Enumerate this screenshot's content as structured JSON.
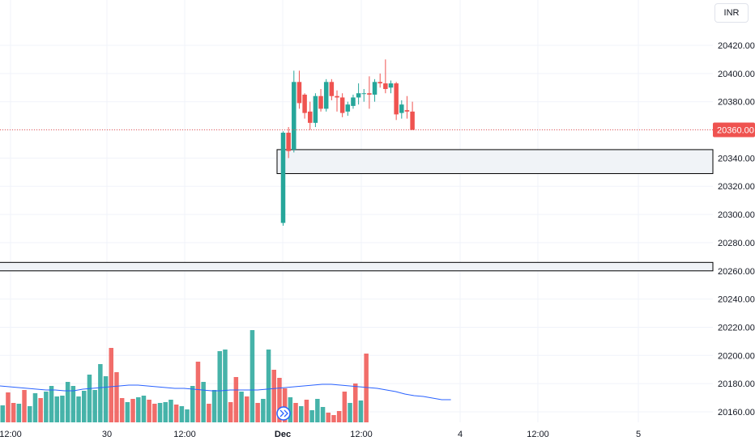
{
  "currency_label": "INR",
  "current_price_label": "20360.00",
  "chart_data": {
    "type": "candlestick",
    "y_axis": {
      "ticks": [
        20420,
        20400,
        20380,
        20360,
        20340,
        20320,
        20300,
        20280,
        20260,
        20240,
        20220,
        20200,
        20180,
        20160
      ],
      "tick_labels": [
        "20420.00",
        "20400.00",
        "20380.00",
        "20340.00",
        "20320.00",
        "20300.00",
        "20280.00",
        "20260.00",
        "20240.00",
        "20220.00",
        "20200.00",
        "20180.00",
        "20160.00"
      ]
    },
    "x_axis": {
      "tick_labels": [
        "12:00",
        "30",
        "12:00",
        "Dec",
        "12:00",
        "4",
        "12:00",
        "5"
      ]
    },
    "current_price": 20360.0,
    "candles": [
      {
        "o": 20294,
        "h": 20359,
        "l": 20292,
        "c": 20358
      },
      {
        "o": 20358,
        "h": 20362,
        "l": 20340,
        "c": 20345
      },
      {
        "o": 20346,
        "h": 20402,
        "l": 20344,
        "c": 20394
      },
      {
        "o": 20394,
        "h": 20402,
        "l": 20375,
        "c": 20379
      },
      {
        "o": 20385,
        "h": 20386,
        "l": 20368,
        "c": 20372
      },
      {
        "o": 20373,
        "h": 20380,
        "l": 20360,
        "c": 20365
      },
      {
        "o": 20365,
        "h": 20386,
        "l": 20362,
        "c": 20384
      },
      {
        "o": 20384,
        "h": 20389,
        "l": 20373,
        "c": 20375
      },
      {
        "o": 20375,
        "h": 20396,
        "l": 20373,
        "c": 20394
      },
      {
        "o": 20394,
        "h": 20396,
        "l": 20381,
        "c": 20384
      },
      {
        "o": 20384,
        "h": 20388,
        "l": 20373,
        "c": 20383
      },
      {
        "o": 20383,
        "h": 20386,
        "l": 20369,
        "c": 20372
      },
      {
        "o": 20373,
        "h": 20380,
        "l": 20370,
        "c": 20378
      },
      {
        "o": 20377,
        "h": 20385,
        "l": 20375,
        "c": 20383
      },
      {
        "o": 20383,
        "h": 20393,
        "l": 20378,
        "c": 20386
      },
      {
        "o": 20386,
        "h": 20389,
        "l": 20380,
        "c": 20386
      },
      {
        "o": 20386,
        "h": 20398,
        "l": 20375,
        "c": 20385
      },
      {
        "o": 20385,
        "h": 20396,
        "l": 20380,
        "c": 20394
      },
      {
        "o": 20394,
        "h": 20400,
        "l": 20390,
        "c": 20393
      },
      {
        "o": 20393,
        "h": 20410,
        "l": 20386,
        "c": 20389
      },
      {
        "o": 20390,
        "h": 20395,
        "l": 20386,
        "c": 20393
      },
      {
        "o": 20393,
        "h": 20394,
        "l": 20367,
        "c": 20371
      },
      {
        "o": 20372,
        "h": 20381,
        "l": 20368,
        "c": 20378
      },
      {
        "o": 20374,
        "h": 20384,
        "l": 20368,
        "c": 20373
      },
      {
        "o": 20373,
        "h": 20380,
        "l": 20360,
        "c": 20360
      }
    ],
    "zones": [
      {
        "top": 20346,
        "bottom": 20329
      },
      {
        "top": 20266,
        "bottom": 20260
      }
    ],
    "volume_bars": [
      {
        "v": 21,
        "dir": "up"
      },
      {
        "v": 37,
        "dir": "down"
      },
      {
        "v": 24,
        "dir": "down"
      },
      {
        "v": 23,
        "dir": "up"
      },
      {
        "v": 40,
        "dir": "down"
      },
      {
        "v": 20,
        "dir": "up"
      },
      {
        "v": 36,
        "dir": "up"
      },
      {
        "v": 30,
        "dir": "down"
      },
      {
        "v": 38,
        "dir": "up"
      },
      {
        "v": 45,
        "dir": "up"
      },
      {
        "v": 32,
        "dir": "up"
      },
      {
        "v": 33,
        "dir": "up"
      },
      {
        "v": 50,
        "dir": "up"
      },
      {
        "v": 45,
        "dir": "up"
      },
      {
        "v": 32,
        "dir": "up"
      },
      {
        "v": 39,
        "dir": "up"
      },
      {
        "v": 59,
        "dir": "up"
      },
      {
        "v": 40,
        "dir": "up"
      },
      {
        "v": 72,
        "dir": "up"
      },
      {
        "v": 57,
        "dir": "up"
      },
      {
        "v": 92,
        "dir": "down"
      },
      {
        "v": 62,
        "dir": "down"
      },
      {
        "v": 30,
        "dir": "down"
      },
      {
        "v": 25,
        "dir": "up"
      },
      {
        "v": 29,
        "dir": "down"
      },
      {
        "v": 31,
        "dir": "up"
      },
      {
        "v": 33,
        "dir": "up"
      },
      {
        "v": 28,
        "dir": "down"
      },
      {
        "v": 23,
        "dir": "down"
      },
      {
        "v": 24,
        "dir": "up"
      },
      {
        "v": 25,
        "dir": "up"
      },
      {
        "v": 28,
        "dir": "up"
      },
      {
        "v": 22,
        "dir": "down"
      },
      {
        "v": 20,
        "dir": "up"
      },
      {
        "v": 16,
        "dir": "up"
      },
      {
        "v": 45,
        "dir": "up"
      },
      {
        "v": 75,
        "dir": "down"
      },
      {
        "v": 50,
        "dir": "up"
      },
      {
        "v": 23,
        "dir": "down"
      },
      {
        "v": 40,
        "dir": "up"
      },
      {
        "v": 88,
        "dir": "up"
      },
      {
        "v": 90,
        "dir": "up"
      },
      {
        "v": 25,
        "dir": "down"
      },
      {
        "v": 56,
        "dir": "down"
      },
      {
        "v": 38,
        "dir": "up"
      },
      {
        "v": 32,
        "dir": "down"
      },
      {
        "v": 114,
        "dir": "up"
      },
      {
        "v": 24,
        "dir": "down"
      },
      {
        "v": 29,
        "dir": "up"
      },
      {
        "v": 90,
        "dir": "up"
      },
      {
        "v": 65,
        "dir": "down"
      },
      {
        "v": 55,
        "dir": "down"
      },
      {
        "v": 42,
        "dir": "down"
      },
      {
        "v": 31,
        "dir": "up"
      },
      {
        "v": 24,
        "dir": "down"
      },
      {
        "v": 20,
        "dir": "up"
      },
      {
        "v": 28,
        "dir": "down"
      },
      {
        "v": 15,
        "dir": "up"
      },
      {
        "v": 29,
        "dir": "up"
      },
      {
        "v": 19,
        "dir": "up"
      },
      {
        "v": 12,
        "dir": "down"
      },
      {
        "v": 9,
        "dir": "down"
      },
      {
        "v": 14,
        "dir": "down"
      },
      {
        "v": 38,
        "dir": "down"
      },
      {
        "v": 24,
        "dir": "up"
      },
      {
        "v": 48,
        "dir": "down"
      },
      {
        "v": 27,
        "dir": "up"
      },
      {
        "v": 85,
        "dir": "down"
      }
    ],
    "volume_ma": [
      45,
      44,
      43,
      42,
      41,
      40,
      40,
      39,
      39,
      41,
      42,
      43,
      44,
      45,
      46,
      46,
      45,
      44,
      43,
      42,
      42,
      41,
      40,
      39,
      39,
      40,
      40,
      40,
      40,
      41,
      42,
      43,
      44,
      45,
      46,
      47,
      47,
      46,
      45,
      44,
      43,
      42,
      40,
      38,
      35,
      33,
      32,
      30,
      28,
      28
    ],
    "colors": {
      "up": "#26a69a",
      "down": "#ef5350",
      "grid": "#f0f3fa",
      "zone_fill": "#f0f3f7",
      "ma": "#2962ff",
      "price_line": "#ef5350"
    }
  }
}
